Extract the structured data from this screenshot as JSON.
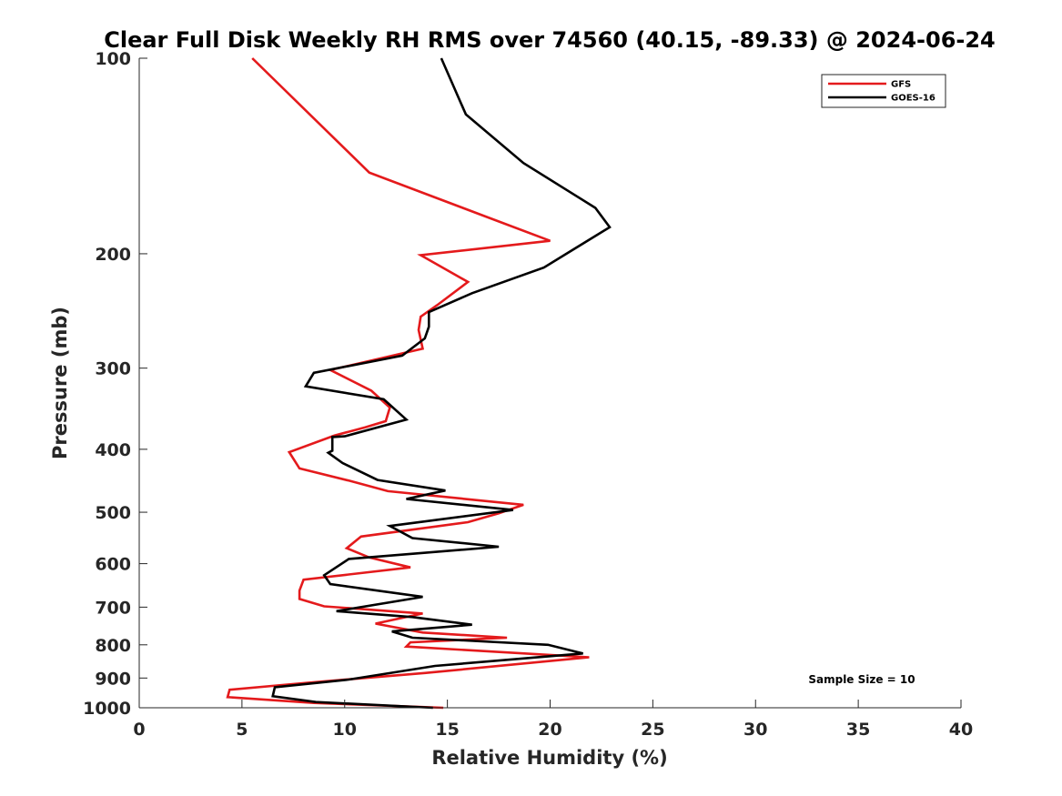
{
  "chart_data": {
    "type": "line",
    "title": "Clear Full Disk Weekly RH RMS over 74560 (40.15, -89.33) @ 2024-06-24",
    "xlabel": "Relative Humidity (%)",
    "ylabel": "Pressure (mb)",
    "xlim": [
      0,
      40
    ],
    "ylim": [
      100,
      1000
    ],
    "y_scale": "log",
    "y_reversed": true,
    "x_ticks": [
      0,
      5,
      10,
      15,
      20,
      25,
      30,
      35,
      40
    ],
    "y_ticks": [
      100,
      200,
      300,
      400,
      500,
      600,
      700,
      800,
      900,
      1000
    ],
    "grid": false,
    "legend_position": "top-right",
    "annotation": "Sample Size = 10",
    "series": [
      {
        "name": "GFS",
        "color": "#e41a1c",
        "points": [
          [
            5.5,
            100
          ],
          [
            11.2,
            150
          ],
          [
            16.8,
            175
          ],
          [
            20.0,
            191
          ],
          [
            13.7,
            201
          ],
          [
            16.0,
            221
          ],
          [
            14.5,
            240
          ],
          [
            13.7,
            250
          ],
          [
            13.6,
            262
          ],
          [
            13.8,
            280
          ],
          [
            9.3,
            302
          ],
          [
            11.3,
            325
          ],
          [
            12.2,
            345
          ],
          [
            12.0,
            362
          ],
          [
            11.0,
            370
          ],
          [
            9.5,
            381
          ],
          [
            7.3,
            404
          ],
          [
            7.8,
            428
          ],
          [
            10.2,
            447
          ],
          [
            12.1,
            464
          ],
          [
            18.7,
            487
          ],
          [
            17.5,
            502
          ],
          [
            16.0,
            518
          ],
          [
            10.8,
            545
          ],
          [
            10.1,
            568
          ],
          [
            11.2,
            587
          ],
          [
            13.2,
            608
          ],
          [
            8.0,
            635
          ],
          [
            7.8,
            660
          ],
          [
            7.8,
            680
          ],
          [
            9.0,
            698
          ],
          [
            13.8,
            716
          ],
          [
            11.5,
            742
          ],
          [
            13.8,
            766
          ],
          [
            17.9,
            780
          ],
          [
            13.2,
            793
          ],
          [
            13.0,
            805
          ],
          [
            21.9,
            836
          ],
          [
            13.9,
            884
          ],
          [
            8.2,
            915
          ],
          [
            4.4,
            938
          ],
          [
            4.3,
            963
          ],
          [
            8.5,
            983
          ],
          [
            14.8,
            1000
          ]
        ]
      },
      {
        "name": "GOES-16",
        "color": "#000000",
        "points": [
          [
            14.7,
            100
          ],
          [
            15.9,
            122
          ],
          [
            18.7,
            145
          ],
          [
            22.2,
            170
          ],
          [
            22.9,
            182
          ],
          [
            19.7,
            210
          ],
          [
            16.2,
            230
          ],
          [
            14.1,
            246
          ],
          [
            14.1,
            259
          ],
          [
            13.9,
            270
          ],
          [
            12.8,
            287
          ],
          [
            8.5,
            305
          ],
          [
            8.1,
            320
          ],
          [
            11.9,
            335
          ],
          [
            13.0,
            360
          ],
          [
            10.0,
            382
          ],
          [
            9.4,
            383
          ],
          [
            9.4,
            402
          ],
          [
            9.2,
            405
          ],
          [
            9.9,
            420
          ],
          [
            11.6,
            446
          ],
          [
            14.9,
            463
          ],
          [
            13.0,
            477
          ],
          [
            18.2,
            496
          ],
          [
            12.2,
            525
          ],
          [
            13.3,
            548
          ],
          [
            17.5,
            565
          ],
          [
            10.2,
            590
          ],
          [
            9.0,
            625
          ],
          [
            9.3,
            645
          ],
          [
            13.8,
            675
          ],
          [
            9.6,
            710
          ],
          [
            13.3,
            725
          ],
          [
            16.2,
            745
          ],
          [
            12.3,
            763
          ],
          [
            13.3,
            780
          ],
          [
            19.9,
            800
          ],
          [
            21.6,
            825
          ],
          [
            14.4,
            862
          ],
          [
            10.2,
            905
          ],
          [
            6.6,
            930
          ],
          [
            6.5,
            960
          ],
          [
            8.6,
            980
          ],
          [
            14.3,
            1000
          ]
        ]
      }
    ]
  }
}
